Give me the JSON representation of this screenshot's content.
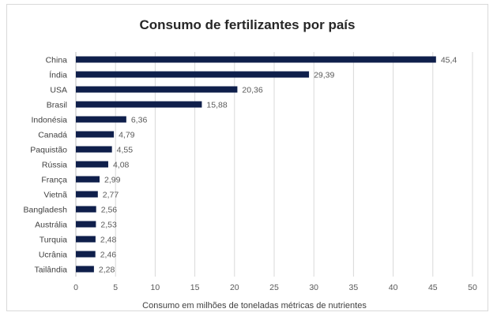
{
  "chart_data": {
    "type": "bar",
    "orientation": "horizontal",
    "title": "Consumo de fertilizantes por país",
    "xlabel": "Consumo em milhões de toneladas métricas de nutrientes",
    "ylabel": "",
    "xlim": [
      0,
      50
    ],
    "xticks": [
      "0",
      "5",
      "10",
      "15",
      "20",
      "25",
      "30",
      "35",
      "40",
      "45",
      "50"
    ],
    "grid": true,
    "bar_color": "#0f1f4b",
    "categories": [
      "China",
      "Índia",
      "USA",
      "Brasil",
      "Indonésia",
      "Canadá",
      "Paquistão",
      "Rússia",
      "França",
      "Vietnã",
      "Bangladesh",
      "Austrália",
      "Turquia",
      "Ucrânia",
      "Tailândia"
    ],
    "values": [
      45.4,
      29.39,
      20.36,
      15.88,
      6.36,
      4.79,
      4.55,
      4.08,
      2.99,
      2.77,
      2.56,
      2.53,
      2.48,
      2.46,
      2.28
    ],
    "value_labels": [
      "45,4",
      "29,39",
      "20,36",
      "15,88",
      "6,36",
      "4,79",
      "4,55",
      "4,08",
      "2,99",
      "2,77",
      "2,56",
      "2,53",
      "2,48",
      "2,46",
      "2,28"
    ]
  }
}
